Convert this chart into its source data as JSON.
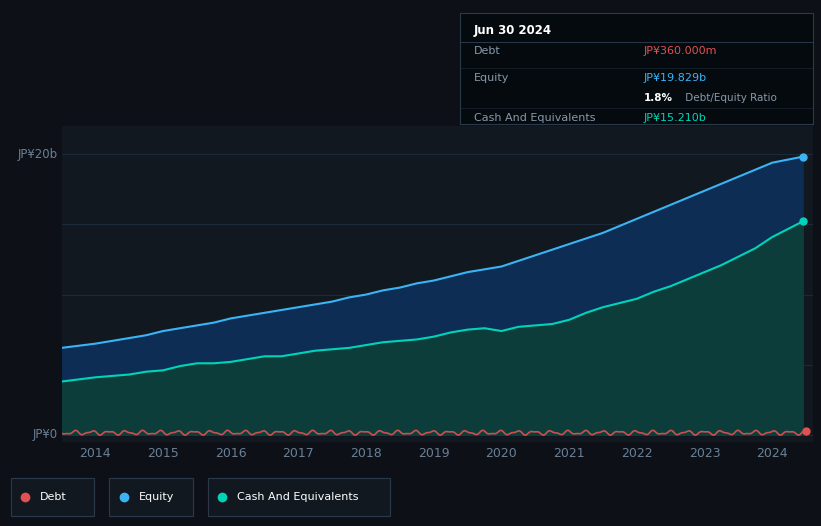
{
  "background_color": "#0d1117",
  "plot_bg_color": "#111820",
  "title_box": {
    "date": "Jun 30 2024",
    "debt_label": "Debt",
    "debt_value": "JP¥360.000m",
    "debt_color": "#e05252",
    "equity_label": "Equity",
    "equity_value": "JP¥19.829b",
    "equity_color": "#3ab4f5",
    "ratio_bold": "1.8%",
    "ratio_rest": " Debt/Equity Ratio",
    "cash_label": "Cash And Equivalents",
    "cash_value": "JP¥15.210b",
    "cash_color": "#00d4b8"
  },
  "equity_color": "#3ab4f5",
  "equity_fill_color": "#0d2d55",
  "cash_color": "#00d4b8",
  "cash_fill_color": "#0d3d3a",
  "debt_color": "#e05252",
  "legend_items": [
    {
      "label": "Debt",
      "color": "#e05252"
    },
    {
      "label": "Equity",
      "color": "#3ab4f5"
    },
    {
      "label": "Cash And Equivalents",
      "color": "#00d4b8"
    }
  ],
  "equity_data_x": [
    2013.5,
    2014.0,
    2014.25,
    2014.5,
    2014.75,
    2015.0,
    2015.25,
    2015.5,
    2015.75,
    2016.0,
    2016.25,
    2016.5,
    2016.75,
    2017.0,
    2017.25,
    2017.5,
    2017.75,
    2018.0,
    2018.25,
    2018.5,
    2018.75,
    2019.0,
    2019.25,
    2019.5,
    2019.75,
    2020.0,
    2020.25,
    2020.5,
    2020.75,
    2021.0,
    2021.25,
    2021.5,
    2021.75,
    2022.0,
    2022.25,
    2022.5,
    2022.75,
    2023.0,
    2023.25,
    2023.5,
    2023.75,
    2024.0,
    2024.45
  ],
  "equity_data_y": [
    6.2,
    6.5,
    6.7,
    6.9,
    7.1,
    7.4,
    7.6,
    7.8,
    8.0,
    8.3,
    8.5,
    8.7,
    8.9,
    9.1,
    9.3,
    9.5,
    9.8,
    10.0,
    10.3,
    10.5,
    10.8,
    11.0,
    11.3,
    11.6,
    11.8,
    12.0,
    12.4,
    12.8,
    13.2,
    13.6,
    14.0,
    14.4,
    14.9,
    15.4,
    15.9,
    16.4,
    16.9,
    17.4,
    17.9,
    18.4,
    18.9,
    19.4,
    19.829
  ],
  "cash_data_x": [
    2013.5,
    2014.0,
    2014.25,
    2014.5,
    2014.75,
    2015.0,
    2015.25,
    2015.5,
    2015.75,
    2016.0,
    2016.25,
    2016.5,
    2016.75,
    2017.0,
    2017.25,
    2017.5,
    2017.75,
    2018.0,
    2018.25,
    2018.5,
    2018.75,
    2019.0,
    2019.25,
    2019.5,
    2019.75,
    2020.0,
    2020.25,
    2020.5,
    2020.75,
    2021.0,
    2021.25,
    2021.5,
    2021.75,
    2022.0,
    2022.25,
    2022.5,
    2022.75,
    2023.0,
    2023.25,
    2023.5,
    2023.75,
    2024.0,
    2024.45
  ],
  "cash_data_y": [
    3.8,
    4.1,
    4.2,
    4.3,
    4.5,
    4.6,
    4.9,
    5.1,
    5.1,
    5.2,
    5.4,
    5.6,
    5.6,
    5.8,
    6.0,
    6.1,
    6.2,
    6.4,
    6.6,
    6.7,
    6.8,
    7.0,
    7.3,
    7.5,
    7.6,
    7.4,
    7.7,
    7.8,
    7.9,
    8.2,
    8.7,
    9.1,
    9.4,
    9.7,
    10.2,
    10.6,
    11.1,
    11.6,
    12.1,
    12.7,
    13.3,
    14.1,
    15.21
  ],
  "xlim": [
    2013.5,
    2024.6
  ],
  "ylim": [
    -0.5,
    22
  ],
  "yticks": [
    0,
    5,
    10,
    15,
    20
  ],
  "ytick_labels": [
    "JP¥0",
    "",
    "",
    "",
    "JP¥20b"
  ],
  "xticks": [
    2014,
    2015,
    2016,
    2017,
    2018,
    2019,
    2020,
    2021,
    2022,
    2023,
    2024
  ],
  "xtick_labels": [
    "2014",
    "2015",
    "2016",
    "2017",
    "2018",
    "2019",
    "2020",
    "2021",
    "2022",
    "2023",
    "2024"
  ],
  "grid_color": "#1e2d3d",
  "tick_color": "#6a7f95"
}
